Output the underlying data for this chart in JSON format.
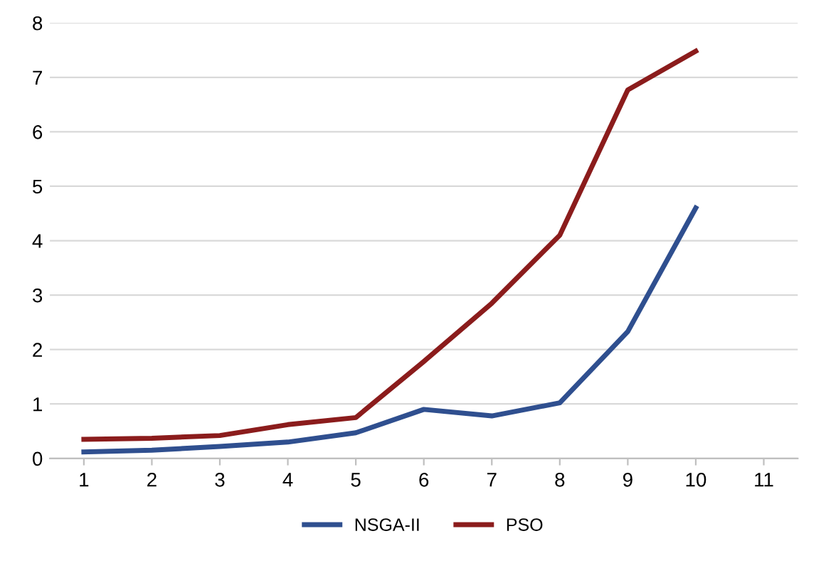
{
  "chart_data": {
    "type": "line",
    "categories": [
      "1",
      "2",
      "3",
      "4",
      "5",
      "6",
      "7",
      "8",
      "9",
      "10",
      "11"
    ],
    "series": [
      {
        "name": "NSGA-II",
        "color": "#2f4f8f",
        "values": [
          0.12,
          0.15,
          0.22,
          0.3,
          0.47,
          0.9,
          0.78,
          1.02,
          2.33,
          4.6,
          null
        ]
      },
      {
        "name": "PSO",
        "color": "#8b1c1c",
        "values": [
          0.35,
          0.37,
          0.42,
          0.62,
          0.75,
          1.78,
          2.85,
          4.1,
          6.77,
          7.48,
          null
        ]
      }
    ],
    "ylim": [
      0,
      8
    ],
    "yticks": [
      0,
      1,
      2,
      3,
      4,
      5,
      6,
      7,
      8
    ],
    "grid": "y",
    "legend": "bottom",
    "marker": "none",
    "line_style": "solid"
  }
}
